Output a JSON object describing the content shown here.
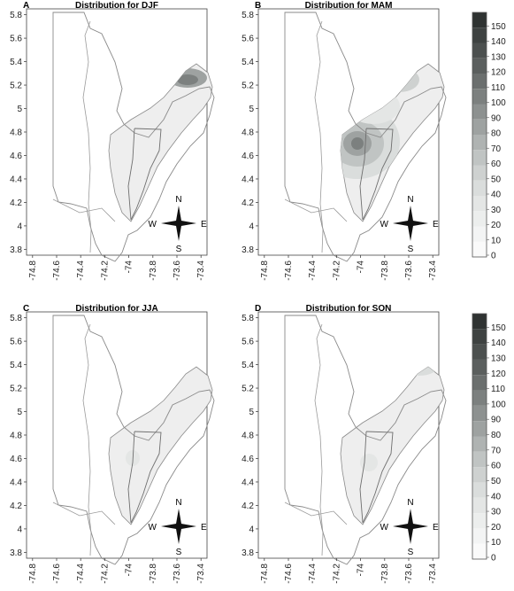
{
  "panels": [
    {
      "id": "A",
      "letter": "A",
      "title": "Distribution for DJF"
    },
    {
      "id": "B",
      "letter": "B",
      "title": "Distribution for MAM"
    },
    {
      "id": "C",
      "letter": "C",
      "title": "Distribution for JJA"
    },
    {
      "id": "D",
      "letter": "D",
      "title": "Distribution for SON"
    }
  ],
  "axes": {
    "lat_ticks": [
      "5.8",
      "5.6",
      "5.4",
      "5.2",
      "5",
      "4.8",
      "4.6",
      "4.4",
      "4.2",
      "4",
      "3.8"
    ],
    "lon_ticks": [
      "-74.8",
      "-74.6",
      "-74.4",
      "-74.2",
      "-74",
      "-73.8",
      "-73.6",
      "-73.4"
    ]
  },
  "compass": {
    "n": "N",
    "s": "S",
    "e": "E",
    "w": "W"
  },
  "colorbar": {
    "levels": [
      "150",
      "140",
      "130",
      "120",
      "110",
      "100",
      "90",
      "80",
      "70",
      "60",
      "50",
      "40",
      "30",
      "20",
      "10",
      "0"
    ],
    "colors": [
      "#2f3332",
      "#3e4241",
      "#4c504f",
      "#5b5f5e",
      "#6b6f6e",
      "#7c807f",
      "#8d9190",
      "#9ea2a1",
      "#afb3b2",
      "#c0c4c3",
      "#ced1d0",
      "#dadddc",
      "#e4e6e5",
      "#eceeed",
      "#f3f4f4",
      "#fafafa"
    ]
  }
}
